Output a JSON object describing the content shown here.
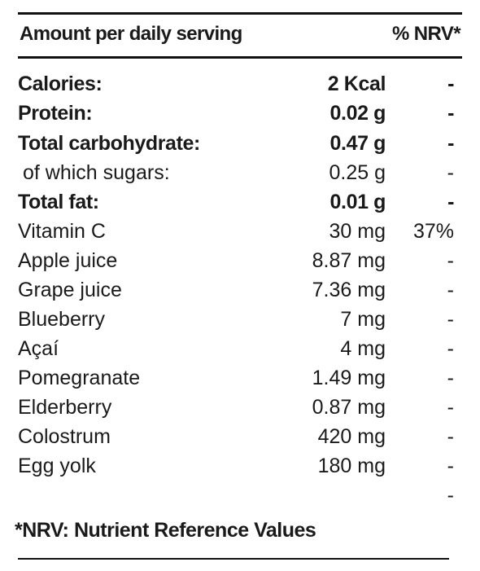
{
  "header": {
    "amount_label": "Amount per daily serving",
    "nrv_label": "% NRV*"
  },
  "rows": [
    {
      "name": "Calories:",
      "amount": "2 Kcal",
      "nrv": "-"
    },
    {
      "name": "Protein:",
      "amount": "0.02 g",
      "nrv": "-"
    },
    {
      "name": "Total carbohydrate:",
      "amount": "0.47 g",
      "nrv": "-"
    },
    {
      "name": "of which sugars:",
      "amount": "0.25 g",
      "nrv": "-"
    },
    {
      "name": "Total fat:",
      "amount": "0.01 g",
      "nrv": "-"
    },
    {
      "name": "Vitamin C",
      "amount": "30 mg",
      "nrv": "37%"
    },
    {
      "name": "Apple juice",
      "amount": "8.87 mg",
      "nrv": "-"
    },
    {
      "name": "Grape juice",
      "amount": "7.36 mg",
      "nrv": "-"
    },
    {
      "name": "Blueberry",
      "amount": "7 mg",
      "nrv": "-"
    },
    {
      "name": "Açaí",
      "amount": "4 mg",
      "nrv": "-"
    },
    {
      "name": "Pomegranate",
      "amount": "1.49 mg",
      "nrv": "-"
    },
    {
      "name": "Elderberry",
      "amount": "0.87 mg",
      "nrv": "-"
    },
    {
      "name": "Colostrum",
      "amount": "420 mg",
      "nrv": "-"
    },
    {
      "name": "Egg yolk",
      "amount": "180 mg",
      "nrv": "-"
    },
    {
      "name": "",
      "amount": "",
      "nrv": "-"
    }
  ],
  "footnote": "*NRV: Nutrient Reference Values"
}
